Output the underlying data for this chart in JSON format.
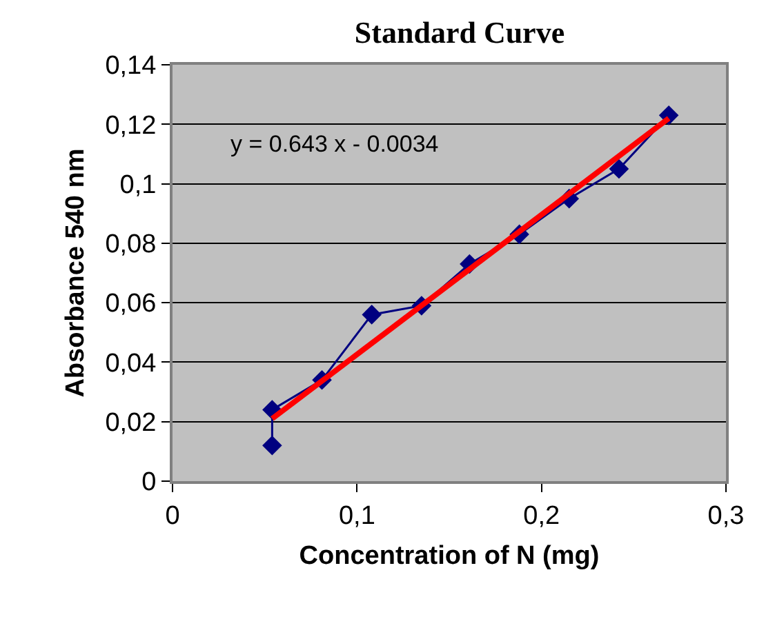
{
  "chart_data": {
    "type": "scatter",
    "title": "Standard Curve",
    "xlabel": "Concentration of N (mg)",
    "ylabel": "Absorbance 540 nm",
    "annotations": [
      "y = 0.643 x - 0.0034"
    ],
    "series": [
      {
        "type": "line",
        "color": "#000080",
        "marker": "diamond",
        "x": [
          0.054,
          0.054,
          0.081,
          0.108,
          0.135,
          0.161,
          0.188,
          0.215,
          0.242,
          0.269
        ],
        "values": [
          0.012,
          0.024,
          0.034,
          0.056,
          0.059,
          0.073,
          0.083,
          0.095,
          0.105,
          0.123
        ]
      },
      {
        "type": "line",
        "color": "#ff0000",
        "marker": "none",
        "x": [
          0.054,
          0.269
        ],
        "values": [
          0.021,
          0.122
        ]
      }
    ],
    "xlim": [
      0,
      0.3
    ],
    "xticks": [
      0,
      {
        "value": 0.1,
        "label": "0,1"
      },
      {
        "value": 0.2,
        "label": "0,2"
      },
      {
        "value": 0.3,
        "label": "0,3"
      }
    ],
    "ylim": [
      0,
      0.14
    ],
    "yticks": [
      0,
      {
        "value": 0.02,
        "label": "0,02"
      },
      {
        "value": 0.04,
        "label": "0,04"
      },
      {
        "value": 0.06,
        "label": "0,06"
      },
      {
        "value": 0.08,
        "label": "0,08"
      },
      {
        "value": 0.1,
        "label": "0,1"
      },
      {
        "value": 0.12,
        "label": "0,12"
      },
      {
        "value": 0.14,
        "label": "0,14"
      }
    ],
    "grid": "y"
  }
}
